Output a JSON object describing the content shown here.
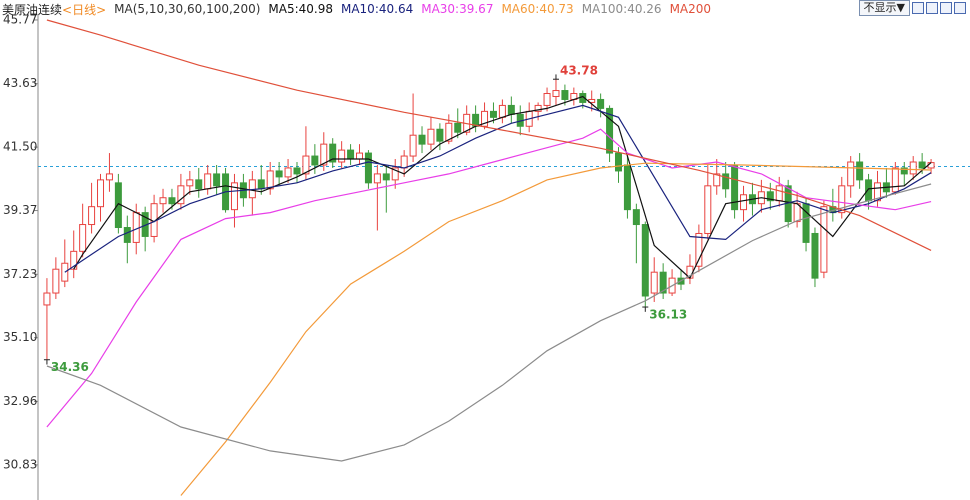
{
  "toolbar": {
    "button": "不显示▼"
  },
  "chart_data": {
    "type": "candlestick",
    "title": "美原油连续",
    "subtitle": "<日线>",
    "legend_title": "MA(5,10,30,60,100,200)",
    "up_color": "#e8423f",
    "down_color": "#3d9b3d",
    "xlim": [
      -1,
      100
    ],
    "ylim": [
      29.65,
      45.97
    ],
    "yticks": [
      45.77,
      43.63,
      {
        "value": 41.5,
        "label": "41.50"
      },
      39.37,
      37.23,
      {
        "value": 35.1,
        "label": "35.10"
      },
      32.96,
      30.83
    ],
    "last_price_line": 40.85,
    "open": [
      36.2,
      36.6,
      37.0,
      37.4,
      38.0,
      38.9,
      39.5,
      40.4,
      40.3,
      38.8,
      38.3,
      39.3,
      38.5,
      39.6,
      39.8,
      39.6,
      40.2,
      40.4,
      40.1,
      40.6,
      40.6,
      39.4,
      40.3,
      39.8,
      40.4,
      40.1,
      40.7,
      40.5,
      40.8,
      40.6,
      41.2,
      40.9,
      41.6,
      41.0,
      41.4,
      41.1,
      41.3,
      40.3,
      40.6,
      40.4,
      40.8,
      41.2,
      41.9,
      41.6,
      42.1,
      41.7,
      42.3,
      42.0,
      42.6,
      42.2,
      42.7,
      42.5,
      42.9,
      42.6,
      42.2,
      42.7,
      42.9,
      43.2,
      43.4,
      43.1,
      43.3,
      43.0,
      43.1,
      42.8,
      41.3,
      40.9,
      39.4,
      38.9,
      36.6,
      37.3,
      36.6,
      37.1,
      37.1,
      37.5,
      38.6,
      40.2,
      40.6,
      40.9,
      39.4,
      39.9,
      39.6,
      40.0,
      39.7,
      40.2,
      39.0,
      39.6,
      38.6,
      37.3,
      39.5,
      39.3,
      40.2,
      41.0,
      40.4,
      39.7,
      40.3,
      40.0,
      40.8,
      40.6,
      41.0,
      40.8
    ],
    "high": [
      37.1,
      37.8,
      38.4,
      38.7,
      39.6,
      40.3,
      40.6,
      41.3,
      40.6,
      39.2,
      39.6,
      39.5,
      39.9,
      40.1,
      40.1,
      40.6,
      40.7,
      40.8,
      40.9,
      40.9,
      40.8,
      40.6,
      40.6,
      40.7,
      40.9,
      41.0,
      41.0,
      41.1,
      41.0,
      42.2,
      41.6,
      42.0,
      41.8,
      41.7,
      41.6,
      41.6,
      41.4,
      40.9,
      40.9,
      41.1,
      41.4,
      43.3,
      42.2,
      42.5,
      42.3,
      42.6,
      42.8,
      42.9,
      42.9,
      43.0,
      43.0,
      43.1,
      43.2,
      42.9,
      43.0,
      43.0,
      43.5,
      43.78,
      43.6,
      43.5,
      43.4,
      43.4,
      43.3,
      42.9,
      41.5,
      41.2,
      39.6,
      39.0,
      37.8,
      37.6,
      37.4,
      37.4,
      37.9,
      38.9,
      40.9,
      41.1,
      41.0,
      41.0,
      40.2,
      40.3,
      40.4,
      40.3,
      40.5,
      40.4,
      40.0,
      39.8,
      38.8,
      39.7,
      40.1,
      40.5,
      41.2,
      41.3,
      40.6,
      40.7,
      40.8,
      41.0,
      41.0,
      41.2,
      41.3,
      41.1
    ],
    "low": [
      34.36,
      36.4,
      36.8,
      37.1,
      37.8,
      38.6,
      39.0,
      40.0,
      38.6,
      37.6,
      37.9,
      38.0,
      38.3,
      39.3,
      39.4,
      39.4,
      39.9,
      39.8,
      39.9,
      39.9,
      39.3,
      38.8,
      39.5,
      39.2,
      39.9,
      39.9,
      40.2,
      40.3,
      40.3,
      40.4,
      40.6,
      40.7,
      40.8,
      40.8,
      40.9,
      40.9,
      40.1,
      38.7,
      39.3,
      40.1,
      40.5,
      41.0,
      41.3,
      41.4,
      41.4,
      41.6,
      41.8,
      41.9,
      42.0,
      42.1,
      42.3,
      42.3,
      42.3,
      41.9,
      42.0,
      42.4,
      42.7,
      42.9,
      42.9,
      42.9,
      42.8,
      42.7,
      42.5,
      41.0,
      40.3,
      39.1,
      37.6,
      36.13,
      36.3,
      36.4,
      36.5,
      36.7,
      36.9,
      37.3,
      38.4,
      39.9,
      39.8,
      39.1,
      39.0,
      39.2,
      39.3,
      39.4,
      39.5,
      38.8,
      38.8,
      38.0,
      36.8,
      37.1,
      39.0,
      39.1,
      39.8,
      40.1,
      39.4,
      39.5,
      39.8,
      39.9,
      40.2,
      40.4,
      40.6,
      40.6
    ],
    "close": [
      36.6,
      37.4,
      37.6,
      38.0,
      38.9,
      39.5,
      40.4,
      40.6,
      38.8,
      38.3,
      39.3,
      38.5,
      39.6,
      39.8,
      39.6,
      40.2,
      40.4,
      40.1,
      40.6,
      40.2,
      39.4,
      40.3,
      39.8,
      40.4,
      40.1,
      40.7,
      40.5,
      40.8,
      40.6,
      41.2,
      40.9,
      41.6,
      41.0,
      41.4,
      41.1,
      41.3,
      40.3,
      40.6,
      40.4,
      40.8,
      41.2,
      41.9,
      41.6,
      42.1,
      41.7,
      42.3,
      42.0,
      42.6,
      42.2,
      42.7,
      42.5,
      42.9,
      42.6,
      42.2,
      42.7,
      42.9,
      43.3,
      43.4,
      43.1,
      43.3,
      43.0,
      43.1,
      42.8,
      41.3,
      40.7,
      39.4,
      38.9,
      36.5,
      37.3,
      36.6,
      37.1,
      36.9,
      37.5,
      38.6,
      40.2,
      40.6,
      40.1,
      39.4,
      39.9,
      39.6,
      40.0,
      39.7,
      40.2,
      39.0,
      39.6,
      38.3,
      37.1,
      39.5,
      39.3,
      40.2,
      41.0,
      40.4,
      39.7,
      40.3,
      40.0,
      40.8,
      40.6,
      41.0,
      40.8,
      40.98
    ],
    "series": [
      {
        "name": "MA5:40.98",
        "color": "#111111",
        "x": [
          3,
          4,
          8,
          12,
          16,
          20,
          24,
          28,
          32,
          36,
          40,
          44,
          48,
          52,
          56,
          60,
          64,
          68,
          72,
          76,
          80,
          84,
          88,
          92,
          96,
          99
        ],
        "values": [
          37.4,
          37.9,
          39.6,
          39.0,
          40.0,
          40.2,
          40.0,
          40.5,
          41.1,
          41.1,
          40.6,
          41.6,
          42.2,
          42.6,
          42.8,
          43.2,
          42.2,
          38.2,
          37.1,
          39.6,
          39.8,
          39.6,
          38.5,
          40.1,
          40.2,
          40.98
        ]
      },
      {
        "name": "MA10:40.64",
        "color": "#1a237e",
        "x": [
          2,
          8,
          12,
          16,
          20,
          24,
          28,
          32,
          36,
          40,
          44,
          48,
          52,
          56,
          60,
          64,
          68,
          72,
          76,
          80,
          84,
          88,
          92,
          96,
          99
        ],
        "values": [
          37.3,
          38.5,
          39.0,
          39.6,
          40.0,
          40.1,
          40.3,
          40.7,
          41.0,
          40.8,
          41.2,
          41.8,
          42.3,
          42.6,
          42.9,
          42.5,
          40.5,
          38.5,
          38.4,
          39.4,
          39.7,
          39.3,
          39.6,
          40.1,
          40.64
        ]
      },
      {
        "name": "MA30:39.67",
        "color": "#e83ee8",
        "x": [
          0,
          5,
          10,
          15,
          20,
          25,
          30,
          35,
          40,
          45,
          50,
          55,
          60,
          62,
          65,
          70,
          75,
          80,
          85,
          90,
          95,
          99
        ],
        "values": [
          32.1,
          33.9,
          36.3,
          38.4,
          39.1,
          39.3,
          39.7,
          40.0,
          40.3,
          40.6,
          41.0,
          41.4,
          41.8,
          42.1,
          41.3,
          40.8,
          41.0,
          40.6,
          39.8,
          39.6,
          39.4,
          39.67
        ]
      },
      {
        "name": "MA60:40.73",
        "color": "#f39a3a",
        "x": [
          15,
          20,
          25,
          29,
          34,
          40,
          45,
          51,
          56,
          62,
          67,
          78,
          99
        ],
        "values": [
          29.8,
          31.6,
          33.6,
          35.3,
          36.9,
          38.0,
          39.0,
          39.7,
          40.4,
          40.8,
          40.96,
          40.9,
          40.73
        ]
      },
      {
        "name": "MA100:40.26",
        "color": "#8c8c8c",
        "x": [
          0,
          6,
          15,
          25,
          33,
          40,
          45,
          51,
          56,
          62,
          67,
          73,
          79,
          84,
          90,
          99
        ],
        "values": [
          34.15,
          33.5,
          32.1,
          31.3,
          30.96,
          31.5,
          32.3,
          33.5,
          34.66,
          35.67,
          36.34,
          37.35,
          38.36,
          39.03,
          39.54,
          40.26
        ]
      },
      {
        "name": "MA200",
        "color": "#e0503a",
        "x": [
          0,
          6,
          17,
          28,
          40,
          51,
          62,
          73,
          84,
          91,
          99
        ],
        "values": [
          45.77,
          45.26,
          44.25,
          43.41,
          42.67,
          42.07,
          41.46,
          40.72,
          39.88,
          39.2,
          38.03
        ]
      }
    ],
    "annotations": [
      {
        "index": 57,
        "value": 43.78,
        "color": "#e0403a",
        "at": "high"
      },
      {
        "index": 67,
        "value": 36.13,
        "color": "#3d9b3d",
        "at": "low"
      },
      {
        "index": 0,
        "value": 34.36,
        "color": "#3d9b3d",
        "at": "low"
      }
    ]
  }
}
